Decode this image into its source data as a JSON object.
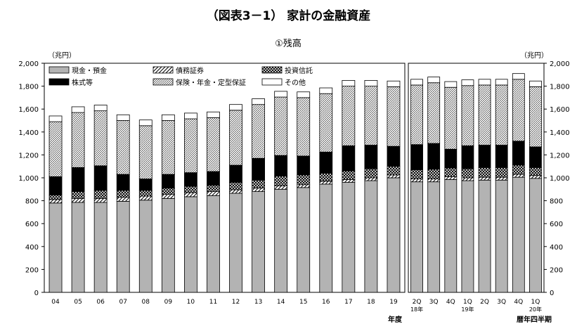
{
  "title": "（図表3－1） 家計の金融資産",
  "chart_data": {
    "type": "bar",
    "stacked": true,
    "subtitle": "①残高",
    "ylabel_left": "（兆円）",
    "ylabel_right": "（兆円）",
    "ylim": [
      0,
      2000
    ],
    "yticks": [
      0,
      200,
      400,
      600,
      800,
      1000,
      1200,
      1400,
      1600,
      1800,
      2000
    ],
    "yticks_labels": [
      "0",
      "200",
      "400",
      "600",
      "800",
      "1,000",
      "1,200",
      "1,400",
      "1,600",
      "1,800",
      "2,000"
    ],
    "grid": false,
    "legend_position": "top-left",
    "series_names": [
      "現金・預金",
      "債務証券",
      "投資信託",
      "株式等",
      "保険・年金・定型保証",
      "その他"
    ],
    "series_patterns": [
      "solid-gray",
      "diagonal",
      "crosshatch",
      "solid-black",
      "fine-diagonal",
      "white"
    ],
    "panels": [
      {
        "xlabel": "年度",
        "categories": [
          "04",
          "05",
          "06",
          "07",
          "08",
          "09",
          "10",
          "11",
          "12",
          "13",
          "14",
          "15",
          "16",
          "17",
          "18",
          "19"
        ],
        "values": [
          [
            780,
            30,
            40,
            160,
            480,
            50
          ],
          [
            785,
            35,
            60,
            210,
            480,
            50
          ],
          [
            785,
            35,
            70,
            215,
            480,
            50
          ],
          [
            795,
            35,
            60,
            140,
            470,
            50
          ],
          [
            805,
            35,
            50,
            100,
            465,
            50
          ],
          [
            820,
            35,
            55,
            120,
            470,
            50
          ],
          [
            835,
            35,
            55,
            120,
            470,
            50
          ],
          [
            845,
            35,
            55,
            120,
            470,
            50
          ],
          [
            865,
            30,
            65,
            150,
            480,
            50
          ],
          [
            880,
            30,
            70,
            190,
            470,
            50
          ],
          [
            900,
            30,
            85,
            180,
            510,
            50
          ],
          [
            915,
            25,
            85,
            165,
            510,
            50
          ],
          [
            945,
            25,
            70,
            185,
            510,
            50
          ],
          [
            960,
            25,
            75,
            220,
            520,
            50
          ],
          [
            975,
            25,
            80,
            205,
            515,
            50
          ],
          [
            1000,
            25,
            75,
            175,
            520,
            50
          ]
        ]
      },
      {
        "xlabel": "暦年四半期",
        "categories": [
          "2Q",
          "3Q",
          "4Q",
          "1Q",
          "2Q",
          "3Q",
          "4Q",
          "1Q"
        ],
        "category_years": [
          "18年",
          "",
          "",
          "19年",
          "",
          "",
          "",
          "20年"
        ],
        "values": [
          [
            965,
            25,
            80,
            220,
            520,
            50
          ],
          [
            965,
            25,
            85,
            225,
            530,
            50
          ],
          [
            985,
            25,
            75,
            165,
            540,
            50
          ],
          [
            975,
            25,
            80,
            200,
            525,
            50
          ],
          [
            980,
            25,
            85,
            195,
            525,
            50
          ],
          [
            980,
            25,
            85,
            195,
            525,
            50
          ],
          [
            1005,
            25,
            80,
            210,
            540,
            50
          ],
          [
            995,
            25,
            70,
            180,
            525,
            50
          ]
        ]
      }
    ]
  }
}
